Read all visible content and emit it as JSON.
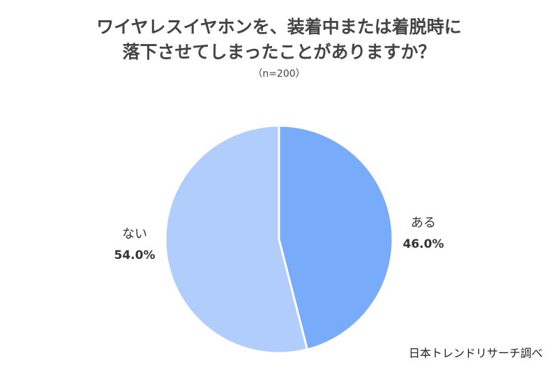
{
  "chart_data": {
    "type": "pie",
    "title": [
      "ワイヤレスイヤホンを、装着中または着脱時に",
      "落下させてしまったことがありますか？"
    ],
    "subtitle": "（n=200）",
    "source": "日本トレンドリサーチ調べ",
    "categories": [
      "ある",
      "ない"
    ],
    "values": [
      46.0,
      54.0
    ],
    "value_labels": [
      "46.0%",
      "54.0%"
    ],
    "colors": [
      "#78abf9",
      "#b0cdfc"
    ]
  }
}
